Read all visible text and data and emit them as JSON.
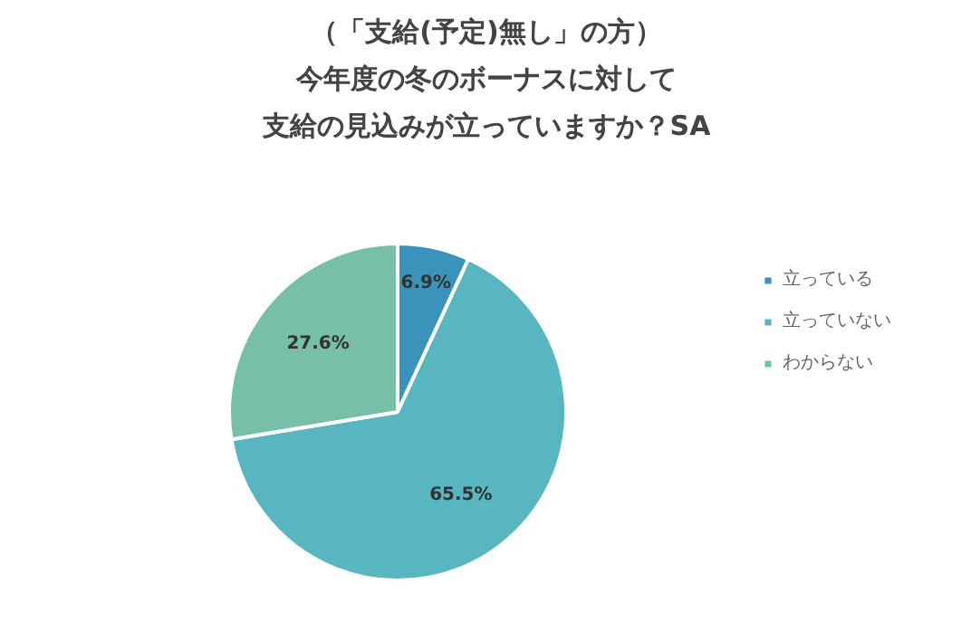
{
  "chart_data": {
    "type": "pie",
    "title": "（「支給(予定)無し」の方）",
    "subtitle": "今年度の冬のボーナスに対して",
    "annotations": [
      "支給の見込みが立っていますか？SA"
    ],
    "categories": [
      "立っている",
      "立っていない",
      "わからない"
    ],
    "values": [
      6.9,
      65.5,
      27.6
    ],
    "colors": [
      "#3a93bb",
      "#58b6c0",
      "#77bfa6"
    ],
    "value_labels": [
      "6.9%",
      "65.5%",
      "27.6%"
    ],
    "legend": "right"
  }
}
